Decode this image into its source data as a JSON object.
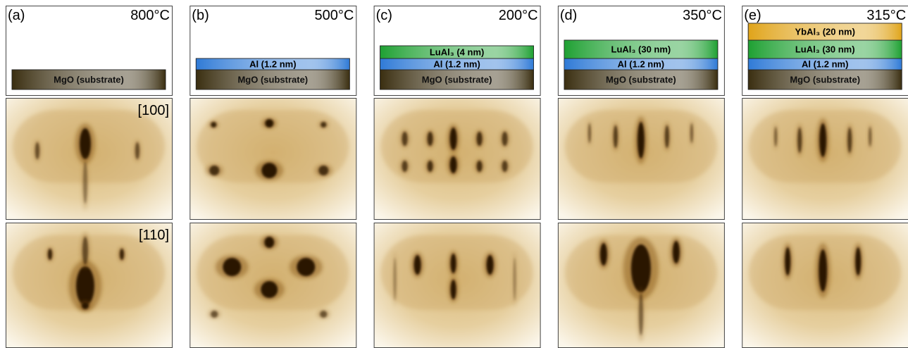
{
  "panels": [
    {
      "label": "(a)",
      "temperature": "800°C",
      "directions": [
        "[100]",
        "[110]"
      ],
      "layers": [
        {
          "text": "MgO (substrate)",
          "color": "#3a2e10"
        }
      ]
    },
    {
      "label": "(b)",
      "temperature": "500°C",
      "layers": [
        {
          "text": "MgO (substrate)",
          "color": "#3a2e10"
        },
        {
          "text": "Al (1.2 nm)",
          "color": "#2f7ad6"
        }
      ]
    },
    {
      "label": "(c)",
      "temperature": "200°C",
      "layers": [
        {
          "text": "MgO (substrate)",
          "color": "#3a2e10"
        },
        {
          "text": "Al (1.2 nm)",
          "color": "#2f7ad6"
        },
        {
          "text": "LuAl₃ (4 nm)",
          "color": "#1ea032"
        }
      ]
    },
    {
      "label": "(d)",
      "temperature": "350°C",
      "layers": [
        {
          "text": "MgO (substrate)",
          "color": "#3a2e10"
        },
        {
          "text": "Al (1.2 nm)",
          "color": "#2f7ad6"
        },
        {
          "text": "LuAl₃ (30 nm)",
          "color": "#1ea032"
        }
      ]
    },
    {
      "label": "(e)",
      "temperature": "315°C",
      "layers": [
        {
          "text": "MgO (substrate)",
          "color": "#3a2e10"
        },
        {
          "text": "Al (1.2 nm)",
          "color": "#2f7ad6"
        },
        {
          "text": "LuAl₃ (30 nm)",
          "color": "#1ea032"
        },
        {
          "text": "YbAl₃ (20 nm)",
          "color": "#e0a41a"
        }
      ]
    }
  ]
}
